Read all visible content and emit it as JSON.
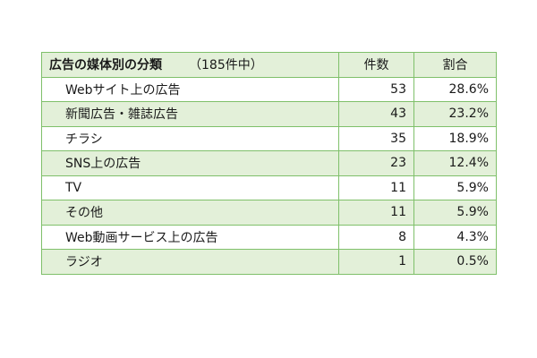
{
  "chart_data": {
    "type": "table",
    "title": "広告の媒体別の分類",
    "note": "（185件中）",
    "columns": [
      "件数",
      "割合"
    ],
    "rows": [
      {
        "label": "Webサイト上の広告",
        "count": "53",
        "ratio": "28.6%"
      },
      {
        "label": "新聞広告・雑誌広告",
        "count": "43",
        "ratio": "23.2%"
      },
      {
        "label": "チラシ",
        "count": "35",
        "ratio": "18.9%"
      },
      {
        "label": "SNS上の広告",
        "count": "23",
        "ratio": "12.4%"
      },
      {
        "label": "TV",
        "count": "11",
        "ratio": "5.9%"
      },
      {
        "label": "その他",
        "count": "11",
        "ratio": "5.9%"
      },
      {
        "label": "Web動画サービス上の広告",
        "count": "8",
        "ratio": "4.3%"
      },
      {
        "label": "ラジオ",
        "count": "1",
        "ratio": "0.5%"
      }
    ]
  },
  "colors": {
    "border": "#7fc06a",
    "band": "#e3f0d9"
  }
}
